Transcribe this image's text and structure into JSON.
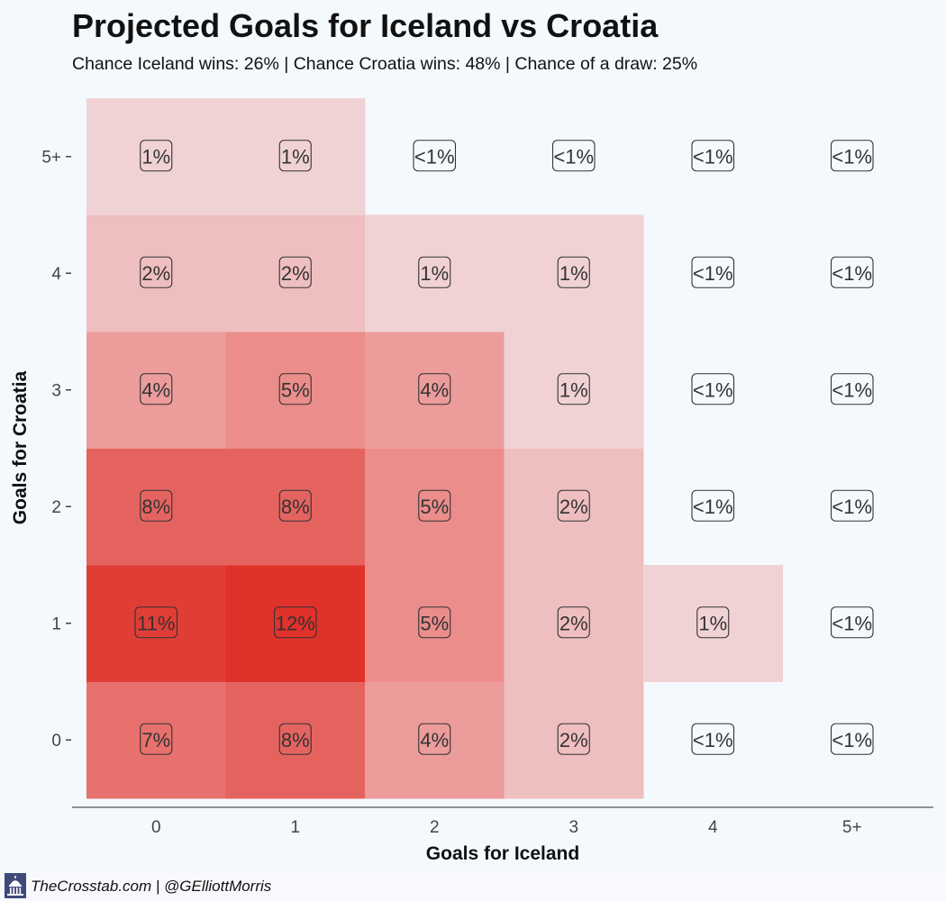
{
  "title": "Projected Goals for Iceland vs Croatia",
  "subtitle": "Chance Iceland wins: 26% | Chance Croatia wins: 48% | Chance of a draw: 25%",
  "footer": {
    "credit": "TheCrosstab.com | @GElliottMorris",
    "logo_icon": "capitol-icon"
  },
  "chart_data": {
    "type": "heatmap",
    "xlabel": "Goals for Iceland",
    "ylabel": "Goals for Croatia",
    "x_categories": [
      "0",
      "1",
      "2",
      "3",
      "4",
      "5+"
    ],
    "y_categories": [
      "0",
      "1",
      "2",
      "3",
      "4",
      "5+"
    ],
    "cells": [
      {
        "x": "0",
        "y": "0",
        "value": 7,
        "label": "7%"
      },
      {
        "x": "1",
        "y": "0",
        "value": 8,
        "label": "8%"
      },
      {
        "x": "2",
        "y": "0",
        "value": 4,
        "label": "4%"
      },
      {
        "x": "3",
        "y": "0",
        "value": 2,
        "label": "2%"
      },
      {
        "x": "4",
        "y": "0",
        "value": 0,
        "label": "<1%"
      },
      {
        "x": "5+",
        "y": "0",
        "value": 0,
        "label": "<1%"
      },
      {
        "x": "0",
        "y": "1",
        "value": 11,
        "label": "11%"
      },
      {
        "x": "1",
        "y": "1",
        "value": 12,
        "label": "12%"
      },
      {
        "x": "2",
        "y": "1",
        "value": 5,
        "label": "5%"
      },
      {
        "x": "3",
        "y": "1",
        "value": 2,
        "label": "2%"
      },
      {
        "x": "4",
        "y": "1",
        "value": 1,
        "label": "1%"
      },
      {
        "x": "5+",
        "y": "1",
        "value": 0,
        "label": "<1%"
      },
      {
        "x": "0",
        "y": "2",
        "value": 8,
        "label": "8%"
      },
      {
        "x": "1",
        "y": "2",
        "value": 8,
        "label": "8%"
      },
      {
        "x": "2",
        "y": "2",
        "value": 5,
        "label": "5%"
      },
      {
        "x": "3",
        "y": "2",
        "value": 2,
        "label": "2%"
      },
      {
        "x": "4",
        "y": "2",
        "value": 0,
        "label": "<1%"
      },
      {
        "x": "5+",
        "y": "2",
        "value": 0,
        "label": "<1%"
      },
      {
        "x": "0",
        "y": "3",
        "value": 4,
        "label": "4%"
      },
      {
        "x": "1",
        "y": "3",
        "value": 5,
        "label": "5%"
      },
      {
        "x": "2",
        "y": "3",
        "value": 4,
        "label": "4%"
      },
      {
        "x": "3",
        "y": "3",
        "value": 1,
        "label": "1%"
      },
      {
        "x": "4",
        "y": "3",
        "value": 0,
        "label": "<1%"
      },
      {
        "x": "5+",
        "y": "3",
        "value": 0,
        "label": "<1%"
      },
      {
        "x": "0",
        "y": "4",
        "value": 2,
        "label": "2%"
      },
      {
        "x": "1",
        "y": "4",
        "value": 2,
        "label": "2%"
      },
      {
        "x": "2",
        "y": "4",
        "value": 1,
        "label": "1%"
      },
      {
        "x": "3",
        "y": "4",
        "value": 1,
        "label": "1%"
      },
      {
        "x": "4",
        "y": "4",
        "value": 0,
        "label": "<1%"
      },
      {
        "x": "5+",
        "y": "4",
        "value": 0,
        "label": "<1%"
      },
      {
        "x": "0",
        "y": "5+",
        "value": 1,
        "label": "1%"
      },
      {
        "x": "1",
        "y": "5+",
        "value": 1,
        "label": "1%"
      },
      {
        "x": "2",
        "y": "5+",
        "value": 0,
        "label": "<1%"
      },
      {
        "x": "3",
        "y": "5+",
        "value": 0,
        "label": "<1%"
      },
      {
        "x": "4",
        "y": "5+",
        "value": 0,
        "label": "<1%"
      },
      {
        "x": "5+",
        "y": "5+",
        "value": 0,
        "label": "<1%"
      }
    ],
    "color_low": "#f4f9fe",
    "color_high": "#e0312a",
    "grid": false,
    "legend": "none"
  }
}
